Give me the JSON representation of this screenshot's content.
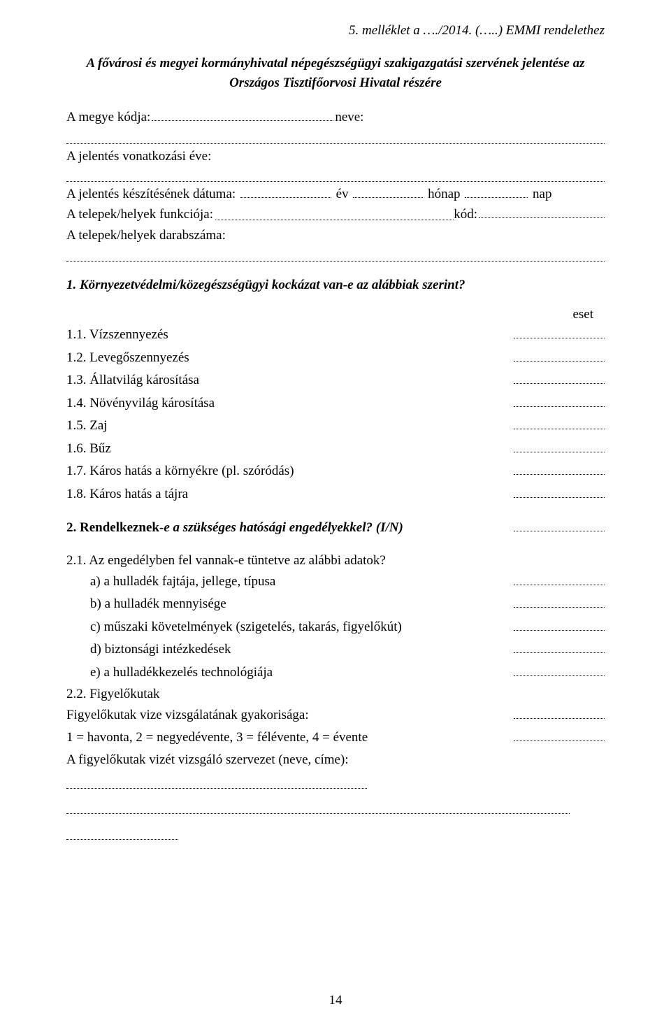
{
  "header_reference": "5. melléklet a …./2014. (…..) EMMI rendelethez",
  "title_line1": "A fővárosi és megyei kormányhivatal népegészségügyi szakigazgatási szervének jelentése az",
  "title_line2": "Országos Tisztifőorvosi Hivatal részére",
  "megye_kodja_label": "A megye kódja:",
  "neve_label": " neve:",
  "jelentes_eve_label": "A jelentés vonatkozási éve:",
  "keszites_datuma_label": "A jelentés készítésének dátuma:",
  "ev_label": " év",
  "honap_label": " hónap",
  "nap_label": " nap",
  "telepek_funkcio_label": "A telepek/helyek funkciója:",
  "kod_label": " kód:",
  "telepek_darab_label": "A telepek/helyek darabszáma:",
  "section1_title": "1. Környezetvédelmi/közegészségügyi kockázat van-e az alábbiak szerint?",
  "col_header": "eset",
  "items1": [
    {
      "n": "1.1.",
      "t": "Vízszennyezés"
    },
    {
      "n": "1.2.",
      "t": "Levegőszennyezés"
    },
    {
      "n": "1.3.",
      "t": "Állatvilág károsítása"
    },
    {
      "n": "1.4.",
      "t": "Növényvilág károsítása"
    },
    {
      "n": "1.5.",
      "t": "Zaj"
    },
    {
      "n": "1.6.",
      "t": "Bűz"
    },
    {
      "n": "1.7.",
      "t": "Káros hatás a környékre (pl. szóródás)"
    },
    {
      "n": "1.8.",
      "t": "Káros hatás a tájra"
    }
  ],
  "section2_title_a": "2. Rendelkeznek-",
  "section2_title_b": "e a szükséges hatósági engedélyekkel? (I/N)",
  "q21": "2.1. Az engedélyben fel vannak-e tüntetve az alábbi adatok?",
  "sub21": [
    {
      "n": "a)",
      "t": "a hulladék fajtája, jellege, típusa"
    },
    {
      "n": "b)",
      "t": "a hulladék mennyisége"
    },
    {
      "n": "c)",
      "t": "műszaki követelmények (szigetelés, takarás, figyelőkút)"
    },
    {
      "n": "d)",
      "t": "biztonsági intézkedések"
    },
    {
      "n": "e)",
      "t": "a hulladékkezelés technológiája"
    }
  ],
  "q22": "2.2. Figyelőkutak",
  "q22_freq": "Figyelőkutak vize vizsgálatának gyakorisága:",
  "q22_scale": "1 = havonta, 2 = negyedévente, 3 = félévente, 4 = évente",
  "q22_org": "A figyelőkutak vizét vizsgáló szervezet (neve, címe):",
  "page_number": "14"
}
